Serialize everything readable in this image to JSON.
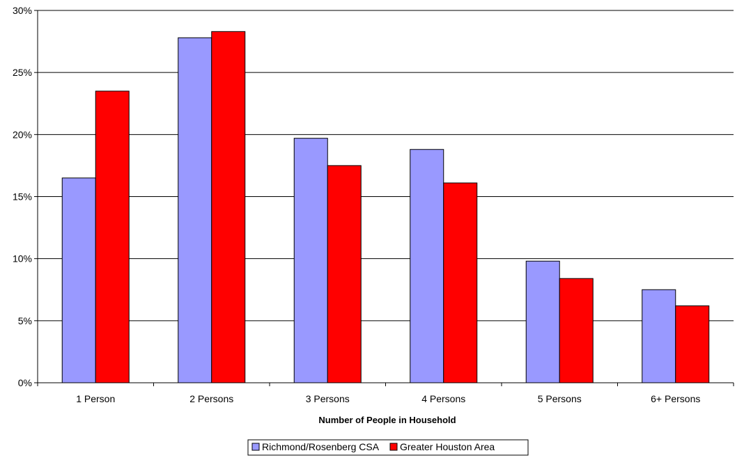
{
  "chart_data": {
    "type": "bar",
    "title": "",
    "xlabel": "Number of People in Household",
    "ylabel": "",
    "ylim": [
      0,
      30
    ],
    "yticks": [
      "0%",
      "5%",
      "10%",
      "15%",
      "20%",
      "25%",
      "30%"
    ],
    "ytick_values": [
      0,
      5,
      10,
      15,
      20,
      25,
      30
    ],
    "categories": [
      "1 Person",
      "2 Persons",
      "3 Persons",
      "4 Persons",
      "5 Persons",
      "6+ Persons"
    ],
    "series": [
      {
        "name": "Richmond/Rosenberg CSA",
        "color": "#9999FF",
        "values": [
          16.5,
          27.8,
          19.7,
          18.8,
          9.8,
          7.5
        ]
      },
      {
        "name": "Greater Houston Area",
        "color": "#FF0000",
        "values": [
          23.5,
          28.3,
          17.5,
          16.1,
          8.4,
          6.2
        ]
      }
    ],
    "grid": true,
    "legend_position": "bottom"
  }
}
